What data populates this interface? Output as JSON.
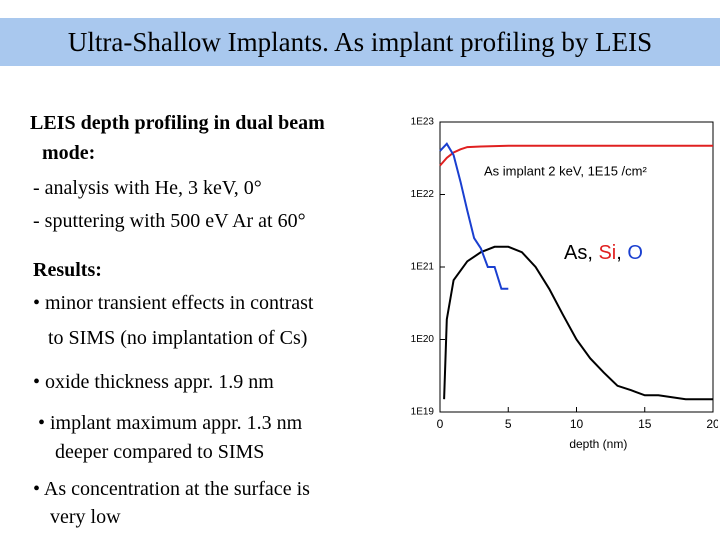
{
  "header": {
    "title": "Ultra-Shallow Implants.  As implant profiling by LEIS"
  },
  "body": [
    {
      "bold": true,
      "lines": [
        "LEIS depth profiling in dual beam",
        "mode:"
      ]
    },
    {
      "bold": false,
      "lines": [
        "- analysis with He, 3 keV, 0°"
      ]
    },
    {
      "bold": false,
      "lines": [
        "- sputtering with 500 eV Ar at 60°"
      ]
    },
    {
      "bold": true,
      "lines": [
        "Results:"
      ]
    },
    {
      "bold": false,
      "lines": [
        "• minor transient effects in contrast",
        "to SIMS (no implantation of Cs)"
      ]
    },
    {
      "bold": false,
      "lines": [
        "• oxide thickness appr. 1.9 nm"
      ]
    },
    {
      "bold": false,
      "lines": [
        "• implant maximum appr. 1.3 nm",
        "deeper compared to SIMS"
      ]
    },
    {
      "bold": false,
      "lines": [
        "• As concentration at the surface is",
        "very low"
      ]
    }
  ],
  "chart_data": {
    "type": "line",
    "x_label": "depth (nm)",
    "annotation": "As implant 2 keV, 1E15 /cm²",
    "log_y": true,
    "xlim": [
      0,
      20
    ],
    "xticks": [
      0,
      5,
      10,
      15,
      20
    ],
    "ylim": [
      1e+19,
      1e+23
    ],
    "yticks": [
      {
        "value": 1e+19,
        "label": "1E19"
      },
      {
        "value": 1e+20,
        "label": "1E20"
      },
      {
        "value": 1e+21,
        "label": "1E21"
      },
      {
        "value": 1e+22,
        "label": "1E22"
      },
      {
        "value": 1e+23,
        "label": "1E23"
      }
    ],
    "series": [
      {
        "name": "As",
        "color": "#000000",
        "x": [
          0.3,
          0.5,
          1,
          2,
          3,
          4,
          5,
          6,
          7,
          8,
          9,
          10,
          11,
          12,
          13,
          14,
          15,
          16,
          18,
          20
        ],
        "values": [
          1.5e+19,
          1.9e+20,
          6.6e+20,
          1.2e+21,
          1.6e+21,
          1.9e+21,
          1.9e+21,
          1.6e+21,
          1e+21,
          5e+20,
          2.2e+20,
          1e+20,
          5.5e+19,
          3.5e+19,
          2.3e+19,
          2e+19,
          1.7e+19,
          1.7e+19,
          1.5e+19,
          1.5e+19
        ]
      },
      {
        "name": "Si",
        "color": "#e02020",
        "x": [
          0,
          0.5,
          1,
          1.5,
          2,
          3,
          5,
          10,
          15,
          20
        ],
        "values": [
          2.5e+22,
          3.2e+22,
          3.8e+22,
          4.2e+22,
          4.5e+22,
          4.6e+22,
          4.7e+22,
          4.7e+22,
          4.7e+22,
          4.7e+22
        ]
      },
      {
        "name": "O",
        "color": "#1a3fd0",
        "x": [
          0,
          0.5,
          1,
          1.5,
          2,
          2.5,
          3,
          3.5,
          4,
          4.5,
          5
        ],
        "values": [
          4e+22,
          5e+22,
          3.5e+22,
          1.5e+22,
          6e+21,
          2.5e+21,
          1.8e+21,
          1e+21,
          1e+21,
          5e+20,
          5e+20
        ]
      }
    ]
  }
}
